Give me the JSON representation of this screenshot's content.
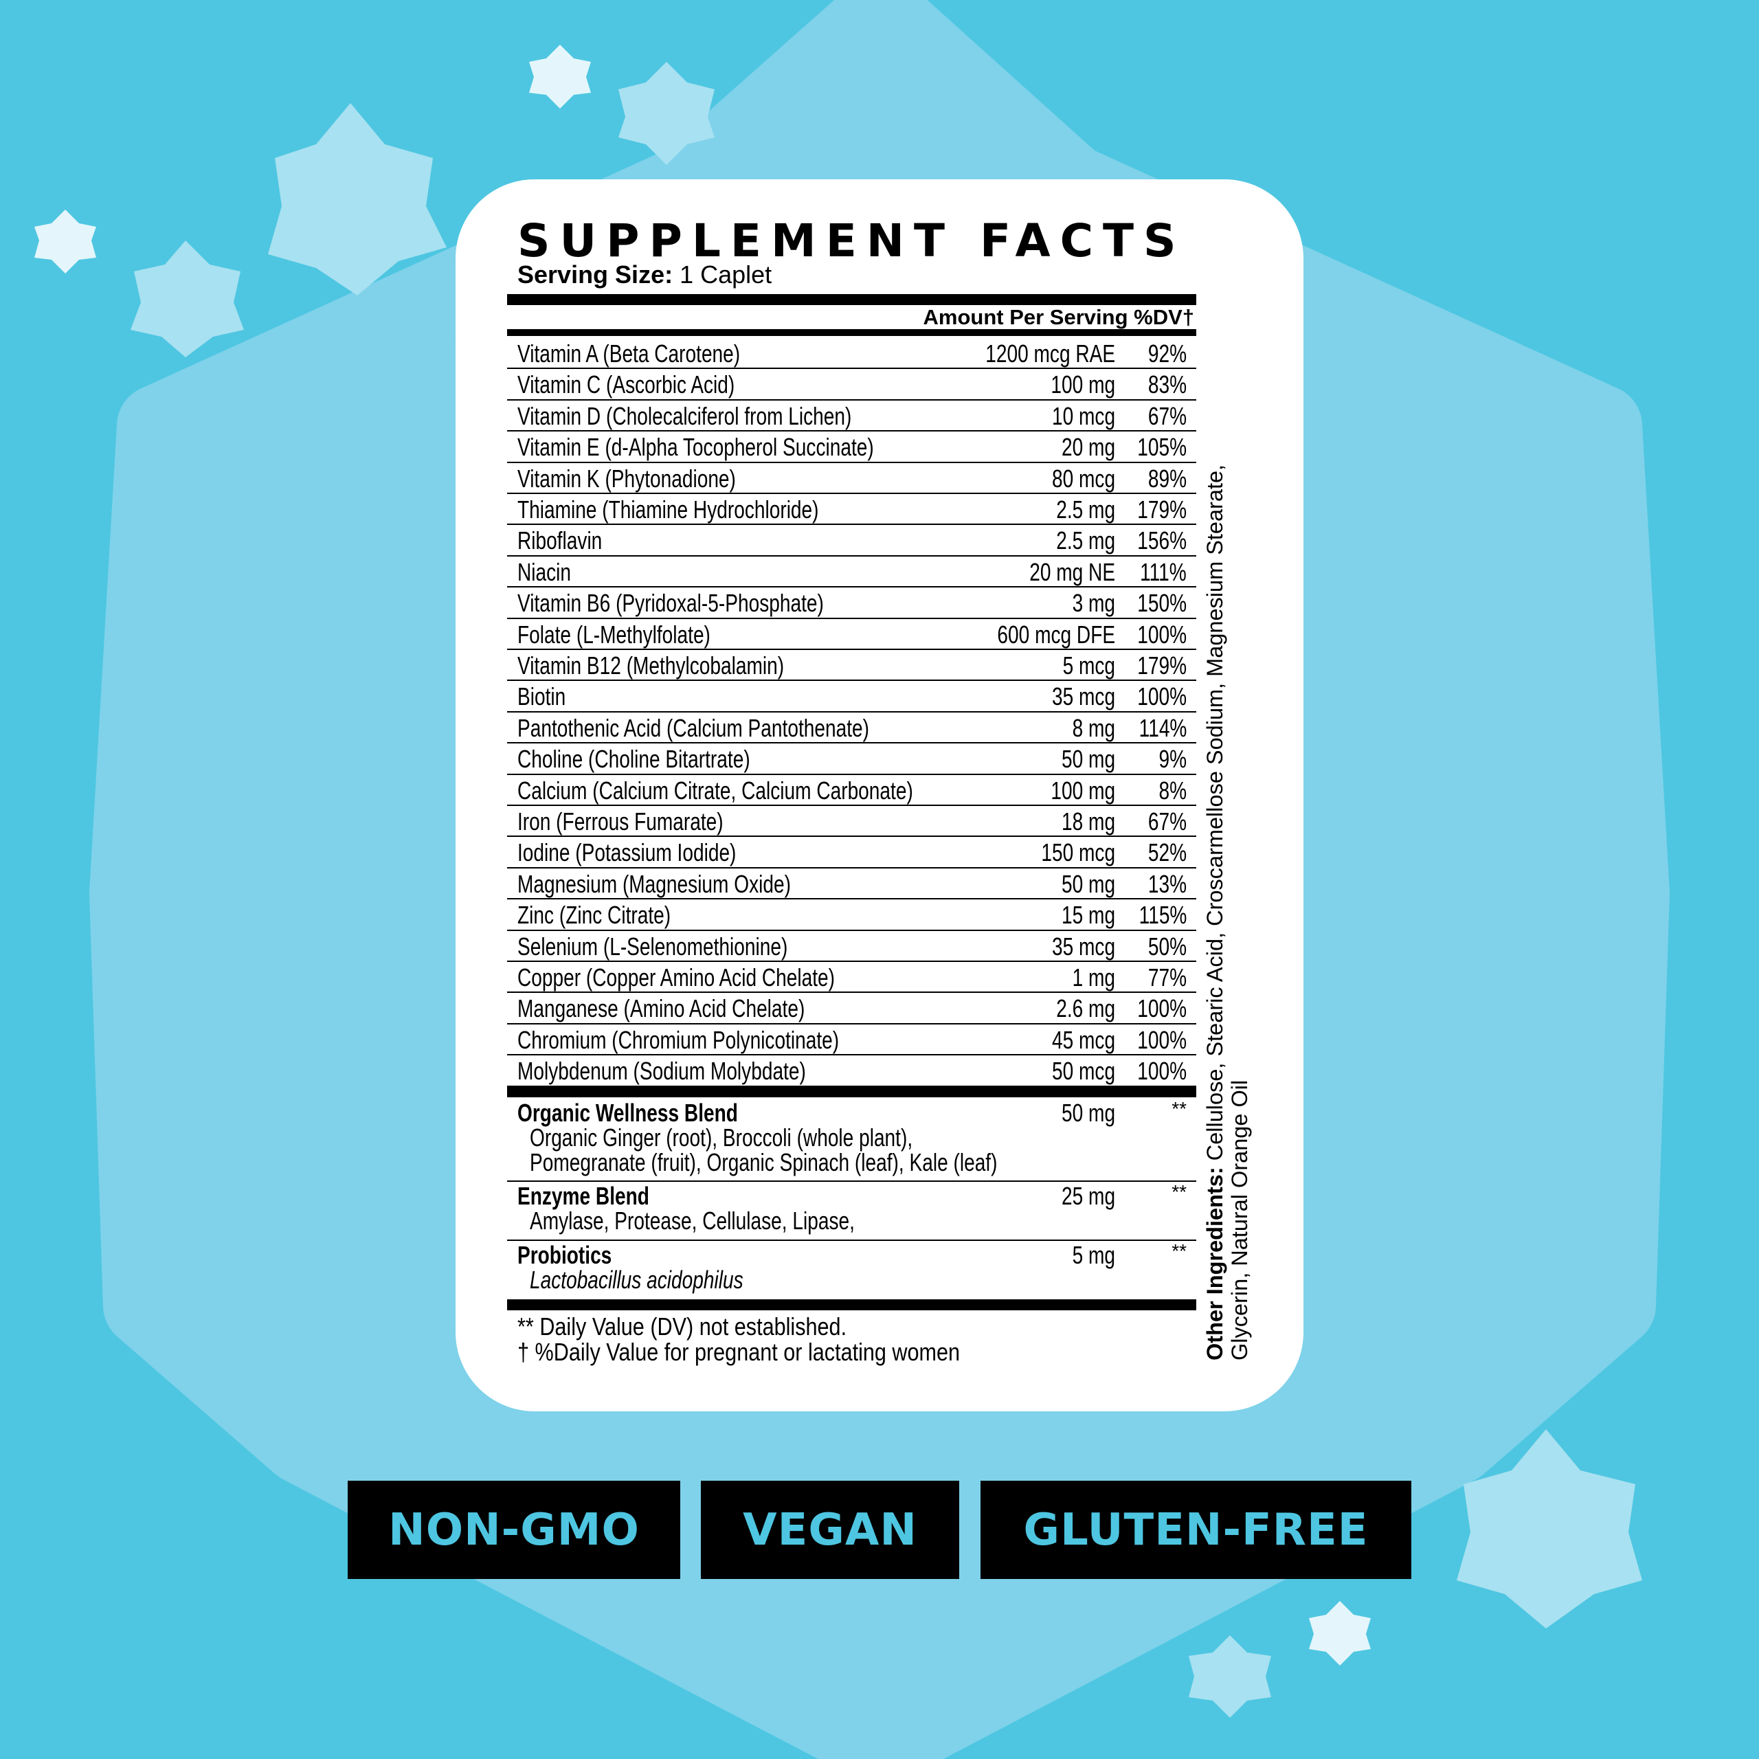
{
  "colors": {
    "background": "#4ec6e1",
    "star_light": "#7fd2ea",
    "badge_bg": "#000000",
    "badge_text": "#4ec6e1"
  },
  "label": {
    "title": "SUPPLEMENT FACTS",
    "serving_size_label": "Serving Size:",
    "serving_size_value": "1 Caplet",
    "header": "Amount Per Serving %DV†",
    "rows": [
      {
        "name": "Vitamin A (Beta Carotene)",
        "amount": "1200 mcg RAE",
        "dv": "92%"
      },
      {
        "name": "Vitamin C (Ascorbic Acid)",
        "amount": "100 mg",
        "dv": "83%"
      },
      {
        "name": "Vitamin D (Cholecalciferol from Lichen)",
        "amount": "10 mcg",
        "dv": "67%"
      },
      {
        "name": "Vitamin E (d-Alpha Tocopherol Succinate)",
        "amount": "20 mg",
        "dv": "105%"
      },
      {
        "name": "Vitamin K (Phytonadione)",
        "amount": "80 mcg",
        "dv": "89%"
      },
      {
        "name": "Thiamine (Thiamine Hydrochloride)",
        "amount": "2.5 mg",
        "dv": "179%"
      },
      {
        "name": "Riboflavin",
        "amount": "2.5 mg",
        "dv": "156%"
      },
      {
        "name": "Niacin",
        "amount": "20 mg NE",
        "dv": "111%"
      },
      {
        "name": "Vitamin B6 (Pyridoxal-5-Phosphate)",
        "amount": "3 mg",
        "dv": "150%"
      },
      {
        "name": "Folate (L-Methylfolate)",
        "amount": "600 mcg DFE",
        "dv": "100%"
      },
      {
        "name": "Vitamin B12 (Methylcobalamin)",
        "amount": "5 mcg",
        "dv": "179%"
      },
      {
        "name": "Biotin",
        "amount": "35 mcg",
        "dv": "100%"
      },
      {
        "name": "Pantothenic Acid (Calcium Pantothenate)",
        "amount": "8 mg",
        "dv": "114%"
      },
      {
        "name": "Choline (Choline Bitartrate)",
        "amount": "50 mg",
        "dv": "9%"
      },
      {
        "name": "Calcium (Calcium Citrate, Calcium Carbonate)",
        "amount": "100 mg",
        "dv": "8%"
      },
      {
        "name": "Iron (Ferrous Fumarate)",
        "amount": "18 mg",
        "dv": "67%"
      },
      {
        "name": "Iodine (Potassium Iodide)",
        "amount": "150 mcg",
        "dv": "52%"
      },
      {
        "name": "Magnesium (Magnesium Oxide)",
        "amount": "50 mg",
        "dv": "13%"
      },
      {
        "name": "Zinc (Zinc Citrate)",
        "amount": "15 mg",
        "dv": "115%"
      },
      {
        "name": "Selenium (L-Selenomethionine)",
        "amount": "35 mcg",
        "dv": "50%"
      },
      {
        "name": "Copper (Copper Amino Acid Chelate)",
        "amount": "1 mg",
        "dv": "77%"
      },
      {
        "name": "Manganese (Amino Acid Chelate)",
        "amount": "2.6 mg",
        "dv": "100%"
      },
      {
        "name": "Chromium (Chromium Polynicotinate)",
        "amount": "45 mcg",
        "dv": "100%"
      },
      {
        "name": "Molybdenum (Sodium Molybdate)",
        "amount": "50 mcg",
        "dv": "100%"
      }
    ],
    "blends": [
      {
        "name": "Organic Wellness Blend",
        "amount": "50 mg",
        "dv": "**",
        "lines": [
          "Organic Ginger (root), Broccoli (whole plant),",
          "Pomegranate (fruit), Organic Spinach (leaf), Kale (leaf)"
        ]
      },
      {
        "name": "Enzyme Blend",
        "amount": "25 mg",
        "dv": "**",
        "lines": [
          "Amylase, Protease, Cellulase, Lipase,"
        ]
      },
      {
        "name": "Probiotics",
        "amount": "5 mg",
        "dv": "**",
        "lines": [
          "Lactobacillus acidophilus"
        ]
      }
    ],
    "footnotes": [
      "** Daily Value (DV) not established.",
      "† %Daily Value for pregnant or lactating women"
    ],
    "other_ingredients_label": "Other Ingredients:",
    "other_ingredients_line1": "Cellulose, Stearic Acid, Croscarmellose Sodium, Magnesium Stearate,",
    "other_ingredients_line2": "Glycerin, Natural Orange Oil"
  },
  "badges": [
    "NON-GMO",
    "VEGAN",
    "GLUTEN-FREE"
  ]
}
